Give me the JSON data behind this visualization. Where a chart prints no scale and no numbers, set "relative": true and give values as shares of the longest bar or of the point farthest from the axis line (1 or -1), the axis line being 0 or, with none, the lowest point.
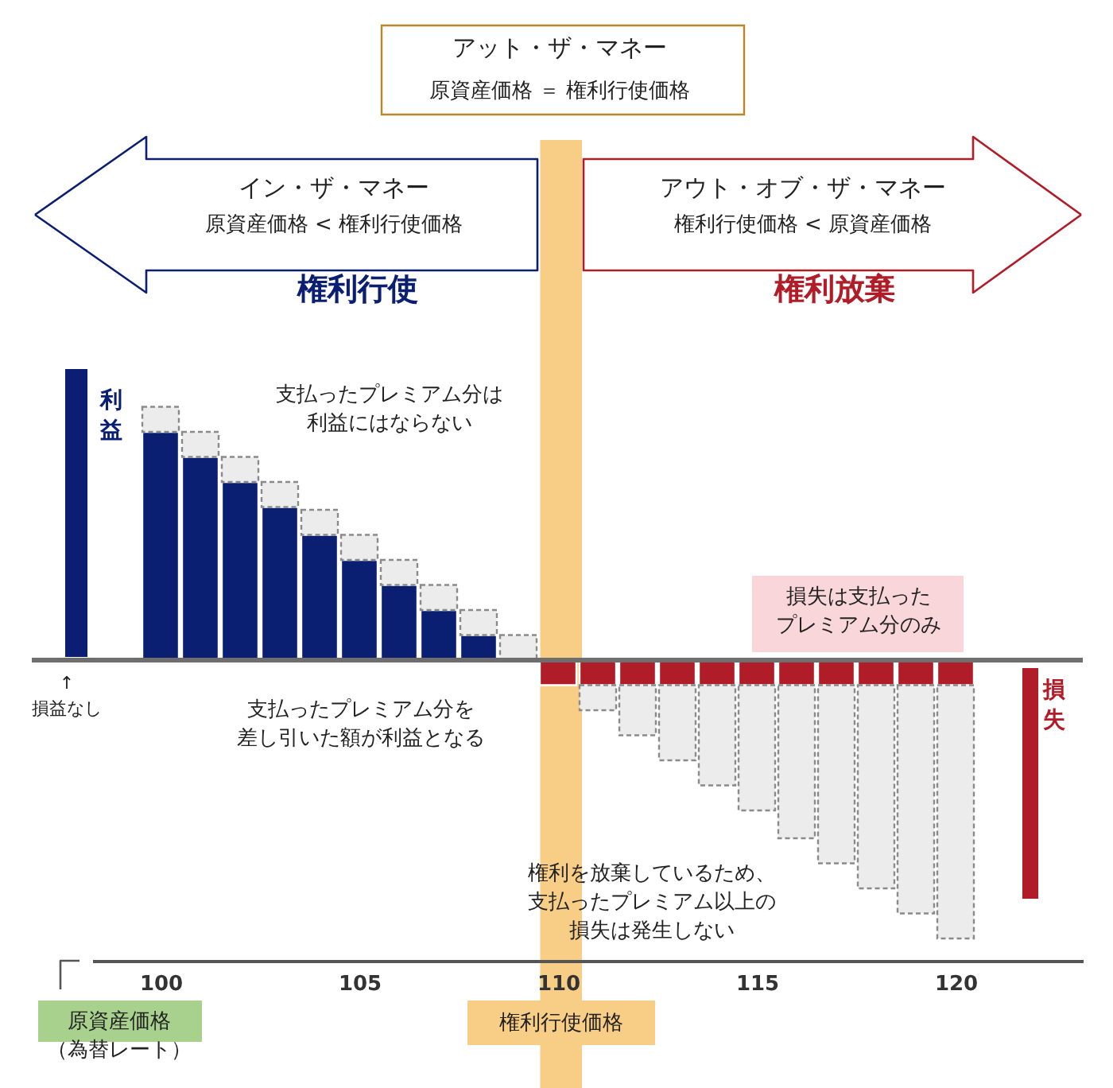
{
  "chart_data": {
    "type": "bar",
    "stacked": true,
    "relative": true,
    "grid": false,
    "x": [
      100,
      101,
      102,
      103,
      104,
      105,
      106,
      107,
      108,
      109,
      110,
      111,
      112,
      113,
      114,
      115,
      116,
      117,
      118,
      119,
      120
    ],
    "xlim": [
      98.28,
      123.2
    ],
    "xticks": [
      100,
      105,
      110,
      115,
      120
    ],
    "xlabel": "原資産価格（為替レート）",
    "series": [
      {
        "color": "#0b1f72",
        "line_style": "solid",
        "values": [
          0.82,
          0.73,
          0.64,
          0.55,
          0.45,
          0.36,
          0.27,
          0.18,
          0.09,
          null,
          null,
          null,
          null,
          null,
          null,
          null,
          null,
          null,
          null,
          null,
          null
        ]
      },
      {
        "color": "#ececec",
        "line_style": "dashed",
        "values": [
          0.09,
          0.09,
          0.09,
          0.09,
          0.09,
          0.09,
          0.09,
          0.09,
          0.09,
          0.09,
          null,
          null,
          null,
          null,
          null,
          null,
          null,
          null,
          null,
          null,
          null
        ]
      },
      {
        "color": "#b01c27",
        "line_style": "solid",
        "values": [
          null,
          null,
          null,
          null,
          null,
          null,
          null,
          null,
          null,
          null,
          -0.09,
          -0.09,
          -0.09,
          -0.09,
          -0.09,
          -0.09,
          -0.09,
          -0.09,
          -0.09,
          -0.09,
          -0.09
        ]
      },
      {
        "color": "#ececec",
        "line_style": "dashed",
        "values": [
          null,
          null,
          null,
          null,
          null,
          null,
          null,
          null,
          null,
          null,
          null,
          -0.09,
          -0.18,
          -0.27,
          -0.36,
          -0.45,
          -0.55,
          -0.64,
          -0.73,
          -0.82,
          -0.91
        ]
      }
    ],
    "bands": [
      {
        "axis": "x",
        "from": 109.55,
        "to": 110.6,
        "label": "権利行使価格",
        "color": "#f8cd85"
      }
    ],
    "annotations": [
      "アット・ザ・マネー",
      "原資産価格 ＝ 権利行使価格",
      "イン・ザ・マネー",
      "原資産価格 < 権利行使価格",
      "アウト・オブ・ザ・マネー",
      "権利行使価格 < 原資産価格",
      "権利行使",
      "権利放棄",
      "利益",
      "損失",
      "↑\n損益なし",
      "支払ったプレミアム分は利益にはならない",
      "支払ったプレミアム分を差し引いた額が利益となる",
      "損失は支払ったプレミアム分のみ",
      "権利を放棄しているため、支払ったプレミアム以上の損失は発生しない"
    ]
  }
}
